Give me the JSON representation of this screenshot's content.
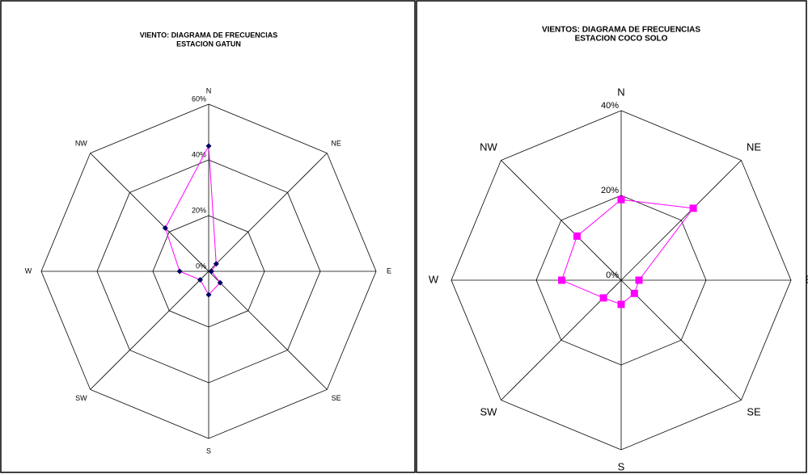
{
  "chart_data": [
    {
      "type": "radar",
      "title": "VIENTO: DIAGRAMA DE FRECUENCIAS",
      "subtitle": "ESTACION GATUN",
      "categories": [
        "N",
        "NE",
        "E",
        "SE",
        "S",
        "SW",
        "W",
        "NW"
      ],
      "values": [
        45,
        3.8,
        1,
        5.8,
        8.4,
        4.3,
        10.4,
        22
      ],
      "line_color": "#ff00ff",
      "marker_color": "#000066",
      "marker": "diamond",
      "ylim": [
        0,
        60
      ],
      "yticks": [
        {
          "value": 0,
          "label": "0%"
        },
        {
          "value": 20,
          "label": "20%"
        },
        {
          "value": 40,
          "label": "40%"
        },
        {
          "value": 60,
          "label": "60%"
        }
      ]
    },
    {
      "type": "radar",
      "title": "VIENTOS: DIAGRAMA DE FRECUENCIAS",
      "subtitle": "ESTACION COCO SOLO",
      "categories": [
        "N",
        "NE",
        "E",
        "SE",
        "S",
        "SW",
        "W",
        "NW"
      ],
      "values": [
        19,
        24,
        4.2,
        4.4,
        5.7,
        5.9,
        14,
        14.7
      ],
      "line_color": "#ff00ff",
      "marker_color": "#ff00ff",
      "marker": "square",
      "ylim": [
        0,
        40
      ],
      "yticks": [
        {
          "value": 0,
          "label": "0%"
        },
        {
          "value": 20,
          "label": "20%"
        },
        {
          "value": 40,
          "label": "40%"
        }
      ]
    }
  ]
}
